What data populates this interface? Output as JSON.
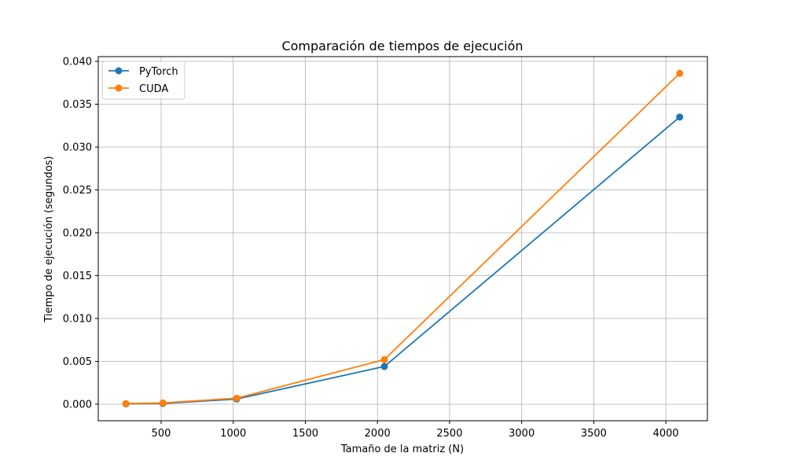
{
  "chart_data": {
    "type": "line",
    "title": "Comparación de tiempos de ejecución",
    "xlabel": "Tamaño de la matriz (N)",
    "ylabel": "Tiempo de ejecución (segundos)",
    "x": [
      256,
      512,
      1024,
      2048,
      4096
    ],
    "xlim": [
      64,
      4288
    ],
    "ylim": [
      -0.00193,
      0.04055
    ],
    "xticks": [
      500,
      1000,
      1500,
      2000,
      2500,
      3000,
      3500,
      4000
    ],
    "yticks": [
      0.0,
      0.005,
      0.01,
      0.015,
      0.02,
      0.025,
      0.03,
      0.035,
      0.04
    ],
    "xtick_labels": [
      "500",
      "1000",
      "1500",
      "2000",
      "2500",
      "3000",
      "3500",
      "4000"
    ],
    "ytick_labels": [
      "0.000",
      "0.005",
      "0.010",
      "0.015",
      "0.020",
      "0.025",
      "0.030",
      "0.035",
      "0.040"
    ],
    "grid": true,
    "legend_position": "top-left",
    "series": [
      {
        "name": "PyTorch",
        "color": "#1f77b4",
        "marker": "circle",
        "values": [
          4e-05,
          8e-05,
          0.0006,
          0.0044,
          0.0335
        ]
      },
      {
        "name": "CUDA",
        "color": "#ff7f0e",
        "marker": "circle",
        "values": [
          7e-05,
          0.00014,
          0.0007,
          0.0052,
          0.0386
        ]
      }
    ]
  }
}
